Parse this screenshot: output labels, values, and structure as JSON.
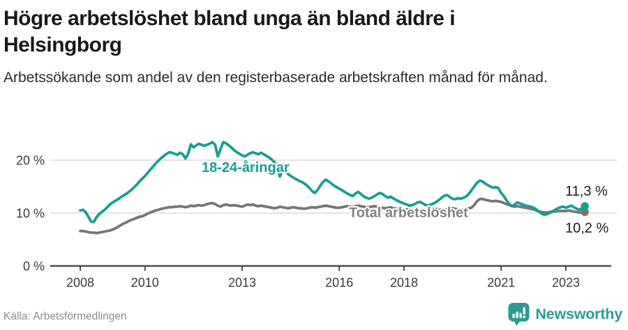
{
  "header": {
    "title": "Högre arbetslöshet bland unga än bland äldre i Helsingborg",
    "subtitle": "Arbetssökande som andel av den registerbaserade arbetskraften månad för månad."
  },
  "footer": {
    "source": "Källa: Arbetsförmedlingen",
    "brand": "Newsworthy",
    "brand_icon": "newsworthy-bubble-barchart-icon"
  },
  "colors": {
    "accent_teal": "#179e94",
    "line_gray": "#767676",
    "axis": "#4d4d4d",
    "gridline": "#dcdcdc",
    "tick_text": "#3a3a3a",
    "end_label_text": "#1c1c1c"
  },
  "chart_data": {
    "type": "line",
    "freq": "monthly",
    "start": "2008-01",
    "end": "2023-08",
    "grid": "horizontal-only",
    "ylim": [
      0,
      25
    ],
    "y_ticks": [
      {
        "label": "0 %",
        "value": 0
      },
      {
        "label": "10 %",
        "value": 10
      },
      {
        "label": "20 %",
        "value": 20
      }
    ],
    "x_ticks": [
      {
        "label": "2008",
        "year": 2008
      },
      {
        "label": "2010",
        "year": 2010
      },
      {
        "label": "2013",
        "year": 2013
      },
      {
        "label": "2016",
        "year": 2016
      },
      {
        "label": "2018",
        "year": 2018
      },
      {
        "label": "2021",
        "year": 2021
      },
      {
        "label": "2023",
        "year": 2023
      }
    ],
    "series": [
      {
        "name": "18-24-åringar",
        "color": "#179e94",
        "label_color": "#179e94",
        "end_label": "11,3 %",
        "end_value": 11.3,
        "values": [
          10.5,
          10.6,
          10.2,
          9.3,
          8.4,
          8.3,
          9.2,
          9.8,
          10.2,
          10.6,
          11.1,
          11.6,
          12.0,
          12.3,
          12.6,
          13.0,
          13.3,
          13.6,
          14.0,
          14.4,
          14.9,
          15.4,
          16.0,
          16.5,
          17.0,
          17.6,
          18.2,
          18.8,
          19.4,
          19.9,
          20.4,
          20.8,
          21.2,
          21.5,
          21.4,
          21.2,
          21.0,
          21.4,
          21.1,
          20.3,
          21.2,
          23.0,
          22.4,
          22.8,
          23.1,
          22.9,
          22.7,
          22.9,
          23.1,
          23.4,
          22.9,
          20.7,
          22.1,
          23.4,
          23.2,
          22.8,
          22.4,
          21.9,
          21.5,
          21.2,
          20.9,
          20.7,
          21.0,
          21.3,
          21.5,
          21.3,
          21.1,
          21.4,
          21.1,
          20.8,
          20.5,
          20.1,
          19.6,
          19.0,
          16.9,
          18.1,
          17.8,
          17.4,
          17.0,
          16.7,
          16.4,
          16.1,
          15.9,
          15.6,
          15.2,
          14.7,
          14.1,
          13.8,
          14.4,
          15.2,
          15.9,
          16.3,
          16.0,
          15.6,
          15.2,
          14.9,
          14.6,
          14.3,
          14.0,
          13.7,
          13.4,
          13.2,
          13.7,
          14.0,
          13.6,
          13.2,
          12.9,
          12.7,
          12.9,
          13.2,
          13.5,
          13.8,
          13.6,
          13.2,
          12.9,
          13.1,
          12.8,
          12.5,
          12.2,
          12.0,
          11.8,
          11.6,
          11.4,
          11.5,
          11.7,
          12.0,
          12.1,
          11.8,
          11.5,
          11.4,
          11.6,
          11.8,
          12.1,
          12.5,
          12.9,
          13.3,
          13.4,
          13.0,
          12.7,
          12.6,
          12.8,
          12.7,
          12.9,
          13.1,
          13.6,
          14.3,
          15.0,
          15.7,
          16.1,
          16.0,
          15.6,
          15.3,
          15.0,
          14.8,
          14.9,
          14.7,
          13.8,
          13.2,
          12.4,
          11.7,
          11.3,
          11.6,
          12.0,
          11.8,
          11.6,
          11.4,
          11.3,
          11.2,
          11.0,
          10.7,
          10.3,
          9.9,
          9.7,
          9.8,
          10.0,
          10.3,
          10.6,
          10.9,
          11.1,
          11.2,
          11.0,
          11.2,
          11.4,
          11.1,
          10.8,
          10.6,
          10.9,
          11.3
        ]
      },
      {
        "name": "Total arbetslöshet",
        "color": "#767676",
        "label_color": "#828282",
        "end_label": "10,2 %",
        "end_value": 10.2,
        "values": [
          6.6,
          6.6,
          6.5,
          6.4,
          6.3,
          6.3,
          6.2,
          6.3,
          6.4,
          6.5,
          6.6,
          6.7,
          6.9,
          7.1,
          7.4,
          7.7,
          8.0,
          8.2,
          8.5,
          8.7,
          8.9,
          9.1,
          9.3,
          9.4,
          9.6,
          9.9,
          10.1,
          10.3,
          10.5,
          10.6,
          10.8,
          10.9,
          11.0,
          11.1,
          11.1,
          11.2,
          11.2,
          11.3,
          11.2,
          11.1,
          11.2,
          11.4,
          11.3,
          11.4,
          11.5,
          11.4,
          11.5,
          11.7,
          11.8,
          11.9,
          11.7,
          11.4,
          11.2,
          11.5,
          11.6,
          11.5,
          11.4,
          11.5,
          11.4,
          11.3,
          11.2,
          11.4,
          11.6,
          11.5,
          11.6,
          11.4,
          11.3,
          11.4,
          11.3,
          11.2,
          11.1,
          11.0,
          10.9,
          11.0,
          11.2,
          11.1,
          11.0,
          10.9,
          11.0,
          11.1,
          11.0,
          10.9,
          10.9,
          10.8,
          10.9,
          11.0,
          11.1,
          11.0,
          11.1,
          11.2,
          11.3,
          11.4,
          11.3,
          11.2,
          11.1,
          11.0,
          11.0,
          11.1,
          11.2,
          11.3,
          11.2,
          11.1,
          11.3,
          11.4,
          11.3,
          11.2,
          11.1,
          11.1,
          11.2,
          11.3,
          11.2,
          11.1,
          11.0,
          10.9,
          11.0,
          11.1,
          10.9,
          10.8,
          10.7,
          10.6,
          10.6,
          10.7,
          10.6,
          10.5,
          10.4,
          10.5,
          10.6,
          10.5,
          10.4,
          10.3,
          10.3,
          10.4,
          10.5,
          10.6,
          10.7,
          10.6,
          10.7,
          10.8,
          10.9,
          10.8,
          10.7,
          10.6,
          10.7,
          10.8,
          10.9,
          11.0,
          11.5,
          12.2,
          12.6,
          12.7,
          12.5,
          12.4,
          12.3,
          12.2,
          12.3,
          12.2,
          12.1,
          11.9,
          11.7,
          11.5,
          11.3,
          11.2,
          11.3,
          11.2,
          11.1,
          11.0,
          10.9,
          10.8,
          10.7,
          10.5,
          10.3,
          10.2,
          10.1,
          10.1,
          10.2,
          10.3,
          10.3,
          10.4,
          10.4,
          10.4,
          10.4,
          10.5,
          10.4,
          10.3,
          10.2,
          10.1,
          10.1,
          10.2
        ]
      }
    ]
  }
}
